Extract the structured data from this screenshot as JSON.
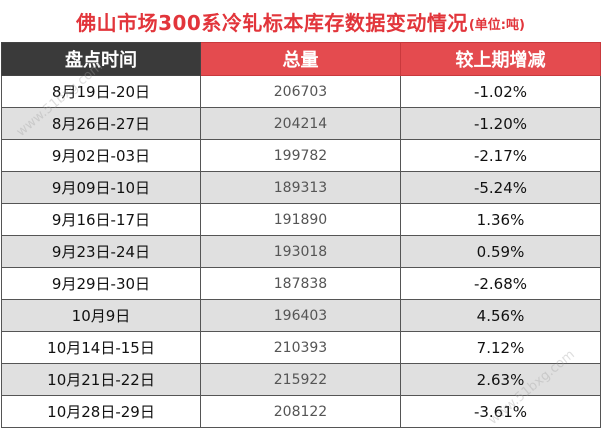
{
  "title": {
    "main": "佛山市场300系冷轧标本库存数据变动情况",
    "unit": "(单位:吨)"
  },
  "table": {
    "headers": [
      "盘点时间",
      "总量",
      "较上期增减"
    ],
    "rows": [
      {
        "period": "8月19日-20日",
        "total": "206703",
        "change": "-1.02%"
      },
      {
        "period": "8月26日-27日",
        "total": "204214",
        "change": "-1.20%"
      },
      {
        "period": "9月02日-03日",
        "total": "199782",
        "change": "-2.17%"
      },
      {
        "period": "9月09日-10日",
        "total": "189313",
        "change": "-5.24%"
      },
      {
        "period": "9月16日-17日",
        "total": "191890",
        "change": "1.36%"
      },
      {
        "period": "9月23日-24日",
        "total": "193018",
        "change": "0.59%"
      },
      {
        "period": "9月29日-30日",
        "total": "187838",
        "change": "-2.68%"
      },
      {
        "period": "10月9日",
        "total": "196403",
        "change": "4.56%"
      },
      {
        "period": "10月14日-15日",
        "total": "210393",
        "change": "7.12%"
      },
      {
        "period": "10月21日-22日",
        "total": "215922",
        "change": "2.63%"
      },
      {
        "period": "10月28日-29日",
        "total": "208122",
        "change": "-3.61%"
      }
    ]
  },
  "watermarks": [
    "www.51bxg.com",
    "www.51bxg.com"
  ],
  "colors": {
    "title": "#e2353b",
    "header_dark": "#3a3a3a",
    "header_red": "#e44b4f",
    "row_alt": "#e0e0e0"
  }
}
